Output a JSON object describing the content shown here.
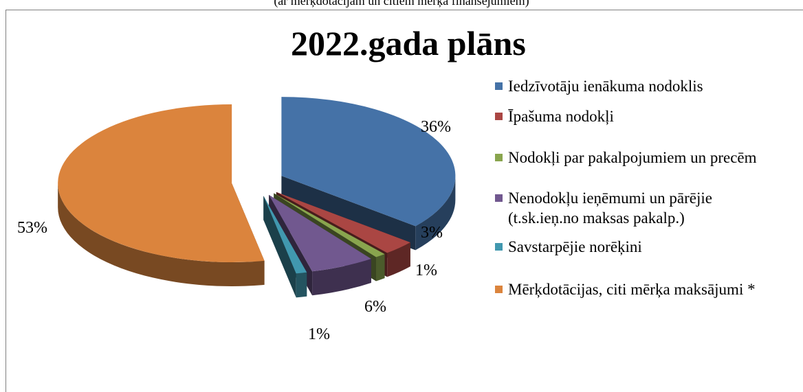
{
  "top_caption": "(ar mērķdotācijām un citiem mērķa finansējumiem)",
  "chart_data": {
    "type": "pie",
    "title": "2022.gada plāns",
    "legend_position": "right",
    "slices": [
      {
        "name": "Iedzīvotāju ienākuma nodoklis",
        "value": 36,
        "label": "36%",
        "color": "#4572A7"
      },
      {
        "name": "Īpašuma nodokļi",
        "value": 3,
        "label": "3%",
        "color": "#AA4643"
      },
      {
        "name": "Nodokļi par pakalpojumiem un precēm",
        "value": 1,
        "label": "1%",
        "color": "#89A54E"
      },
      {
        "name": "Nenodokļu ieņēmumi un pārējie",
        "name_line2": "(t.sk.ieņ.no maksas pakalp.)",
        "value": 6,
        "label": "6%",
        "color": "#71588F"
      },
      {
        "name": "Savstarpējie norēķini",
        "value": 1,
        "label": "1%",
        "color": "#4198AF"
      },
      {
        "name": "Mērķdotācijas, citi mērķa maksājumi *",
        "value": 53,
        "label": "53%",
        "color": "#DB843D"
      }
    ]
  }
}
